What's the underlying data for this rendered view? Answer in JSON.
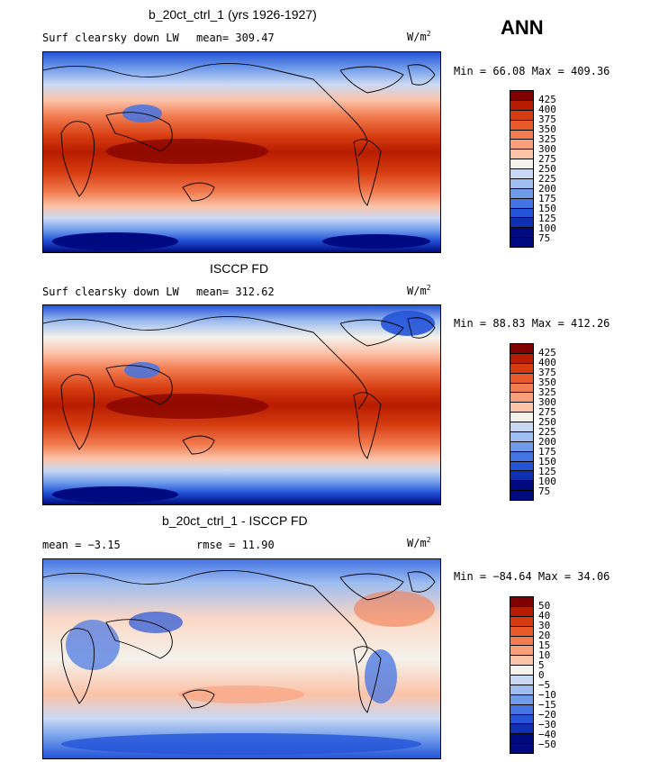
{
  "season": "ANN",
  "units_base": "W/m",
  "units_exp": "2",
  "panels": [
    {
      "title": "b_20ct_ctrl_1 (yrs 1926-1927)",
      "left_label": "Surf clearsky down LW",
      "mid_label": "mean= 309.47",
      "minmax": "Min =  66.08 Max = 409.36",
      "ticks": [
        "425",
        "400",
        "375",
        "350",
        "325",
        "300",
        "275",
        "250",
        "225",
        "200",
        "175",
        "150",
        "125",
        "100",
        "75"
      ]
    },
    {
      "title": "ISCCP FD",
      "left_label": "Surf clearsky down LW",
      "mid_label": "mean= 312.62",
      "minmax": "Min =  88.83 Max = 412.26",
      "ticks": [
        "425",
        "400",
        "375",
        "350",
        "325",
        "300",
        "275",
        "250",
        "225",
        "200",
        "175",
        "150",
        "125",
        "100",
        "75"
      ]
    },
    {
      "title": "b_20ct_ctrl_1 - ISCCP FD",
      "left_label": "mean =  −3.15",
      "mid_label": "rmse =  11.90",
      "minmax": "Min = −84.64 Max =  34.06",
      "ticks": [
        "50",
        "40",
        "30",
        "20",
        "15",
        "10",
        "5",
        "0",
        "−5",
        "−10",
        "−15",
        "−20",
        "−30",
        "−40",
        "−50"
      ]
    }
  ],
  "palette": [
    "#800000",
    "#b71c00",
    "#d63c10",
    "#e85a2a",
    "#f27c50",
    "#f89e7a",
    "#fcc3a8",
    "#f4f2ec",
    "#c9d9f5",
    "#9ebdf0",
    "#6f9bea",
    "#4474e4",
    "#2454d8",
    "#1030b4",
    "#000a80"
  ]
}
